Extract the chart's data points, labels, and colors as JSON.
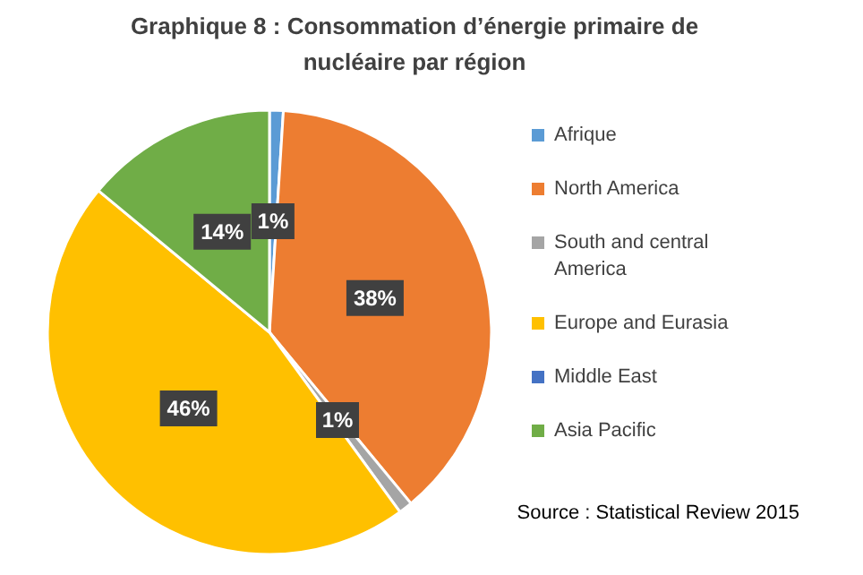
{
  "chart_data": {
    "type": "pie",
    "title": "Graphique 8 : Consommation d’énergie primaire de nucléaire par région",
    "categories": [
      "Afrique",
      "North America",
      "South and central America",
      "Europe and Eurasia",
      "Middle East",
      "Asia Pacific"
    ],
    "values": [
      1,
      38,
      1,
      46,
      0,
      14
    ],
    "value_labels": [
      "1%",
      "38%",
      "1%",
      "46%",
      null,
      "14%"
    ],
    "colors": [
      "#5b9bd5",
      "#ed7d31",
      "#a5a5a5",
      "#ffc000",
      "#4472c4",
      "#70ad47"
    ],
    "legend": "right",
    "annotations": [
      "Source : Statistical Review 2015"
    ]
  }
}
